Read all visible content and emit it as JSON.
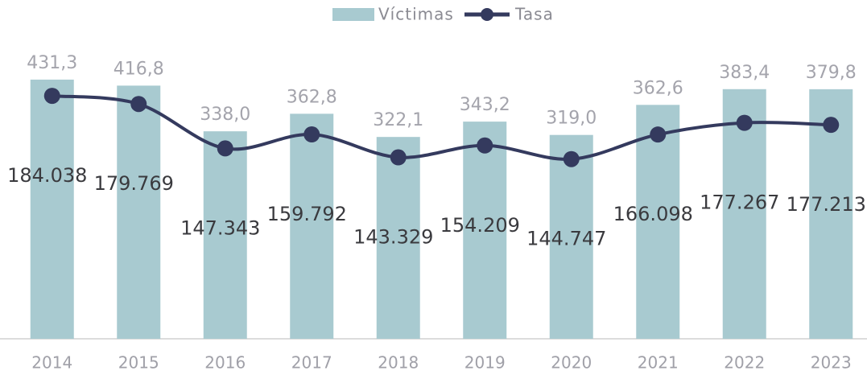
{
  "chart_data": {
    "type": "bar_line",
    "categories": [
      "2014",
      "2015",
      "2016",
      "2017",
      "2018",
      "2019",
      "2020",
      "2021",
      "2022",
      "2023"
    ],
    "series": [
      {
        "name": "Víctimas",
        "type": "bar",
        "color": "#a8cad0",
        "values": [
          184038,
          179769,
          147343,
          159792,
          143329,
          154209,
          144747,
          166098,
          177267,
          177213
        ],
        "value_labels": [
          "184.038",
          "179.769",
          "147.343",
          "159.792",
          "143.329",
          "154.209",
          "144.747",
          "166.098",
          "177.267",
          "177.213"
        ]
      },
      {
        "name": "Tasa",
        "type": "line",
        "axis": "y2",
        "color": "#343a5e",
        "values": [
          431.3,
          416.8,
          338.0,
          362.8,
          322.1,
          343.2,
          319.0,
          362.6,
          383.4,
          379.8
        ],
        "value_labels": [
          "431,3",
          "416,8",
          "338,0",
          "362,8",
          "322,1",
          "343,2",
          "319,0",
          "362,6",
          "383,4",
          "379,8"
        ]
      }
    ],
    "ylim": [
      0,
      200000
    ],
    "y2lim": [
      0,
      500
    ],
    "legend": "top"
  }
}
